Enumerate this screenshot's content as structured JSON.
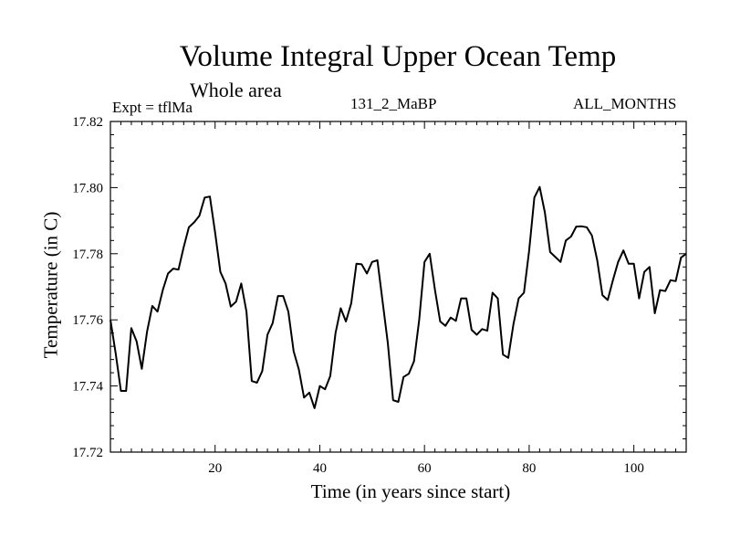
{
  "chart_data": {
    "type": "line",
    "title": "Volume Integral Upper Ocean Temp",
    "subtitle": "Whole area",
    "experiment": "Expt = tflMa",
    "run_label": "131_2_MaBP",
    "period_label": "ALL_MONTHS",
    "xlabel": "Time (in years since start)",
    "ylabel": "Temperature (in C)",
    "xlim": [
      0,
      110
    ],
    "ylim": [
      17.72,
      17.82
    ],
    "xticks": [
      20,
      40,
      60,
      80,
      100
    ],
    "xtick_labels": [
      "20",
      "40",
      "60",
      "80",
      "100"
    ],
    "yticks": [
      17.72,
      17.74,
      17.76,
      17.78,
      17.8,
      17.82
    ],
    "ytick_labels": [
      "17.72",
      "17.74",
      "17.76",
      "17.78",
      "17.80",
      "17.82"
    ],
    "series": [
      {
        "name": "Volume Integral Upper Ocean Temp",
        "x": [
          0,
          1,
          2,
          3,
          4,
          5,
          6,
          7,
          8,
          9,
          10,
          11,
          12,
          13,
          14,
          15,
          16,
          17,
          18,
          19,
          20,
          21,
          22,
          23,
          24,
          25,
          26,
          27,
          28,
          29,
          30,
          31,
          32,
          33,
          34,
          35,
          36,
          37,
          38,
          39,
          40,
          41,
          42,
          43,
          44,
          45,
          46,
          47,
          48,
          49,
          50,
          51,
          52,
          53,
          54,
          55,
          56,
          57,
          58,
          59,
          60,
          61,
          62,
          63,
          64,
          65,
          66,
          67,
          68,
          69,
          70,
          71,
          72,
          73,
          74,
          75,
          76,
          77,
          78,
          79,
          80,
          81,
          82,
          83,
          84,
          85,
          86,
          87,
          88,
          89,
          90,
          91,
          92,
          93,
          94,
          95,
          96,
          97,
          98,
          99,
          100,
          101,
          102,
          103,
          104,
          105,
          106,
          107,
          108,
          109,
          110
        ],
        "y": [
          17.76,
          17.75,
          17.7385,
          17.7385,
          17.7575,
          17.7535,
          17.7452,
          17.7565,
          17.7642,
          17.7625,
          17.769,
          17.774,
          17.7755,
          17.7752,
          17.782,
          17.788,
          17.7895,
          17.7915,
          17.797,
          17.7973,
          17.7865,
          17.7745,
          17.771,
          17.764,
          17.7655,
          17.771,
          17.7625,
          17.7415,
          17.741,
          17.7445,
          17.7555,
          17.759,
          17.7672,
          17.7672,
          17.7625,
          17.7505,
          17.745,
          17.7365,
          17.738,
          17.7333,
          17.74,
          17.739,
          17.743,
          17.756,
          17.7635,
          17.7595,
          17.765,
          17.777,
          17.7768,
          17.774,
          17.7775,
          17.778,
          17.7655,
          17.753,
          17.7357,
          17.7352,
          17.7427,
          17.7437,
          17.7475,
          17.76,
          17.7775,
          17.78,
          17.769,
          17.7595,
          17.7582,
          17.7607,
          17.7597,
          17.7665,
          17.7665,
          17.757,
          17.7555,
          17.7572,
          17.7567,
          17.7682,
          17.7665,
          17.7495,
          17.7485,
          17.7587,
          17.7665,
          17.7682,
          17.781,
          17.797,
          17.8002,
          17.7925,
          17.7805,
          17.779,
          17.7775,
          17.784,
          17.7852,
          17.7882,
          17.7883,
          17.788,
          17.7855,
          17.778,
          17.7675,
          17.766,
          17.772,
          17.7775,
          17.781,
          17.777,
          17.777,
          17.7665,
          17.7745,
          17.776,
          17.762,
          17.769,
          17.7687,
          17.772,
          17.7717,
          17.7788,
          17.78
        ]
      }
    ]
  }
}
